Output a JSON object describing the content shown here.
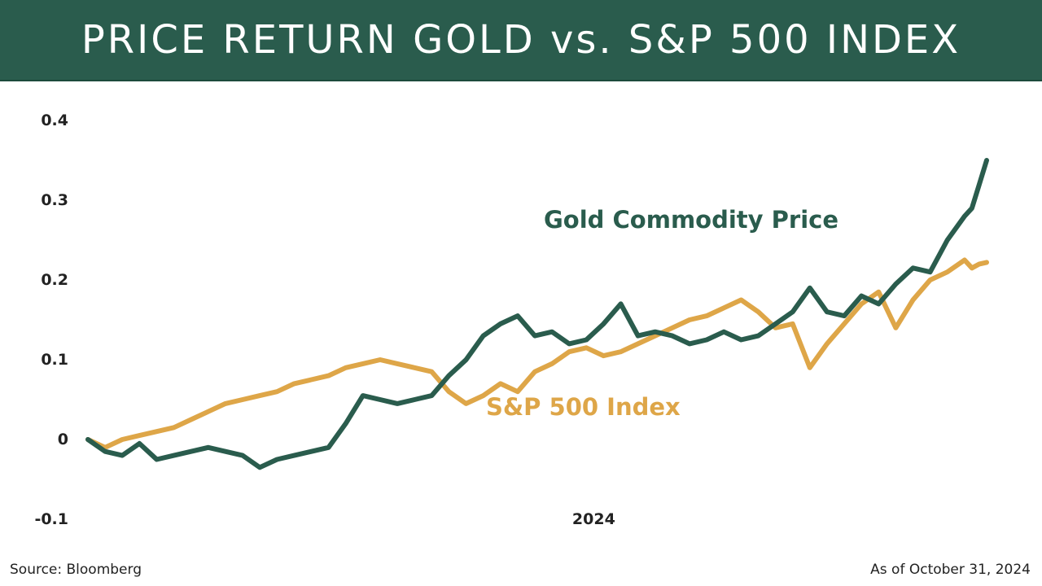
{
  "header": {
    "title": "PRICE RETURN GOLD vs. S&P 500 INDEX"
  },
  "footer": {
    "source": "Source: Bloomberg",
    "as_of": "As of October 31, 2024"
  },
  "colors": {
    "header_bg": "#2a5c4d",
    "gold": "#2a5c4d",
    "sp500": "#dea648",
    "text": "#222222"
  },
  "chart_data": {
    "type": "line",
    "title": "",
    "xlabel": "",
    "ylabel": "",
    "x_start": "2023-10-31",
    "x_end": "2024-10-31",
    "x_tick_labels": [
      {
        "date": "2024-05-24",
        "label": "2024"
      }
    ],
    "y_ticks": [
      -0.1,
      0,
      0.1,
      0.2,
      0.3,
      0.4
    ],
    "y_tick_labels": [
      "-0.1",
      "0",
      "0.1",
      "0.2",
      "0.3",
      "0.4"
    ],
    "ylim": [
      -0.1,
      0.4
    ],
    "grid": false,
    "legend": "inline labels",
    "series": [
      {
        "name": "Gold Commodity Price",
        "color": "#2a5c4d",
        "points": [
          [
            "2023-10-31",
            0.0
          ],
          [
            "2023-11-07",
            -0.015
          ],
          [
            "2023-11-14",
            -0.02
          ],
          [
            "2023-11-21",
            -0.005
          ],
          [
            "2023-11-28",
            -0.025
          ],
          [
            "2023-12-05",
            -0.02
          ],
          [
            "2023-12-12",
            -0.015
          ],
          [
            "2023-12-19",
            -0.01
          ],
          [
            "2023-12-26",
            -0.015
          ],
          [
            "2024-01-02",
            -0.02
          ],
          [
            "2024-01-09",
            -0.035
          ],
          [
            "2024-01-16",
            -0.025
          ],
          [
            "2024-01-23",
            -0.02
          ],
          [
            "2024-01-30",
            -0.015
          ],
          [
            "2024-02-06",
            -0.01
          ],
          [
            "2024-02-13",
            0.02
          ],
          [
            "2024-02-20",
            0.055
          ],
          [
            "2024-02-27",
            0.05
          ],
          [
            "2024-03-05",
            0.045
          ],
          [
            "2024-03-12",
            0.05
          ],
          [
            "2024-03-19",
            0.055
          ],
          [
            "2024-03-26",
            0.08
          ],
          [
            "2024-04-02",
            0.1
          ],
          [
            "2024-04-09",
            0.13
          ],
          [
            "2024-04-16",
            0.145
          ],
          [
            "2024-04-23",
            0.155
          ],
          [
            "2024-04-30",
            0.13
          ],
          [
            "2024-05-07",
            0.135
          ],
          [
            "2024-05-14",
            0.12
          ],
          [
            "2024-05-21",
            0.125
          ],
          [
            "2024-05-28",
            0.145
          ],
          [
            "2024-06-04",
            0.17
          ],
          [
            "2024-06-11",
            0.13
          ],
          [
            "2024-06-18",
            0.135
          ],
          [
            "2024-06-25",
            0.13
          ],
          [
            "2024-07-02",
            0.12
          ],
          [
            "2024-07-09",
            0.125
          ],
          [
            "2024-07-16",
            0.135
          ],
          [
            "2024-07-23",
            0.125
          ],
          [
            "2024-07-30",
            0.13
          ],
          [
            "2024-08-06",
            0.145
          ],
          [
            "2024-08-13",
            0.16
          ],
          [
            "2024-08-20",
            0.19
          ],
          [
            "2024-08-27",
            0.16
          ],
          [
            "2024-09-03",
            0.155
          ],
          [
            "2024-09-10",
            0.18
          ],
          [
            "2024-09-17",
            0.17
          ],
          [
            "2024-09-24",
            0.195
          ],
          [
            "2024-10-01",
            0.215
          ],
          [
            "2024-10-08",
            0.21
          ],
          [
            "2024-10-15",
            0.25
          ],
          [
            "2024-10-22",
            0.28
          ],
          [
            "2024-10-25",
            0.29
          ],
          [
            "2024-10-28",
            0.32
          ],
          [
            "2024-10-31",
            0.35
          ]
        ]
      },
      {
        "name": "S&P 500 Index",
        "color": "#dea648",
        "points": [
          [
            "2023-10-31",
            0.0
          ],
          [
            "2023-11-07",
            -0.01
          ],
          [
            "2023-11-14",
            0.0
          ],
          [
            "2023-11-21",
            0.005
          ],
          [
            "2023-11-28",
            0.01
          ],
          [
            "2023-12-05",
            0.015
          ],
          [
            "2023-12-12",
            0.025
          ],
          [
            "2023-12-19",
            0.035
          ],
          [
            "2023-12-26",
            0.045
          ],
          [
            "2024-01-02",
            0.05
          ],
          [
            "2024-01-09",
            0.055
          ],
          [
            "2024-01-16",
            0.06
          ],
          [
            "2024-01-23",
            0.07
          ],
          [
            "2024-01-30",
            0.075
          ],
          [
            "2024-02-06",
            0.08
          ],
          [
            "2024-02-13",
            0.09
          ],
          [
            "2024-02-20",
            0.095
          ],
          [
            "2024-02-27",
            0.1
          ],
          [
            "2024-03-05",
            0.095
          ],
          [
            "2024-03-12",
            0.09
          ],
          [
            "2024-03-19",
            0.085
          ],
          [
            "2024-03-26",
            0.06
          ],
          [
            "2024-04-02",
            0.045
          ],
          [
            "2024-04-09",
            0.055
          ],
          [
            "2024-04-16",
            0.07
          ],
          [
            "2024-04-23",
            0.06
          ],
          [
            "2024-04-30",
            0.085
          ],
          [
            "2024-05-07",
            0.095
          ],
          [
            "2024-05-14",
            0.11
          ],
          [
            "2024-05-21",
            0.115
          ],
          [
            "2024-05-28",
            0.105
          ],
          [
            "2024-06-04",
            0.11
          ],
          [
            "2024-06-11",
            0.12
          ],
          [
            "2024-06-18",
            0.13
          ],
          [
            "2024-06-25",
            0.14
          ],
          [
            "2024-07-02",
            0.15
          ],
          [
            "2024-07-09",
            0.155
          ],
          [
            "2024-07-16",
            0.165
          ],
          [
            "2024-07-23",
            0.175
          ],
          [
            "2024-07-30",
            0.16
          ],
          [
            "2024-08-06",
            0.14
          ],
          [
            "2024-08-13",
            0.145
          ],
          [
            "2024-08-20",
            0.09
          ],
          [
            "2024-08-27",
            0.12
          ],
          [
            "2024-09-03",
            0.145
          ],
          [
            "2024-09-10",
            0.17
          ],
          [
            "2024-09-17",
            0.185
          ],
          [
            "2024-09-24",
            0.14
          ],
          [
            "2024-10-01",
            0.175
          ],
          [
            "2024-10-08",
            0.2
          ],
          [
            "2024-10-15",
            0.21
          ],
          [
            "2024-10-22",
            0.225
          ],
          [
            "2024-10-25",
            0.215
          ],
          [
            "2024-10-28",
            0.22
          ],
          [
            "2024-10-31",
            0.222
          ]
        ]
      }
    ]
  }
}
